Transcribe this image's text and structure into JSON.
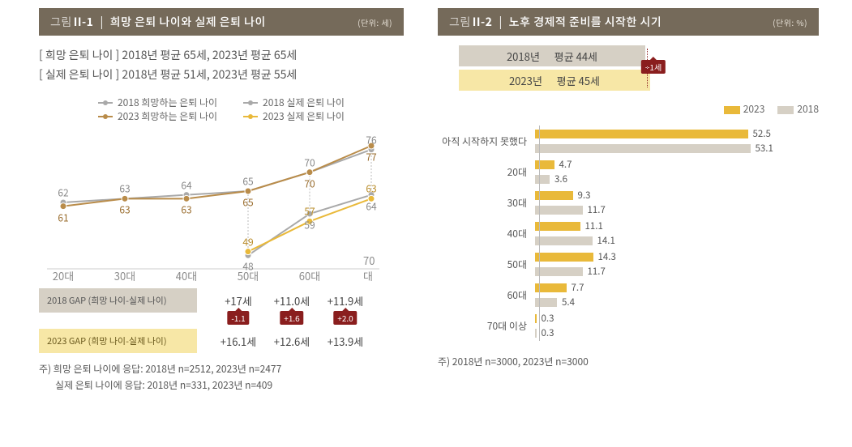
{
  "colors": {
    "header_bg": "#756a5a",
    "header_fg": "#ffffff",
    "unit_fg": "#e6e0d6",
    "gray_2018": "#b1aa9e",
    "brown_2023": "#b98c4a",
    "gold_actual": "#e9b93a",
    "light_gray": "#a9a9a9",
    "gap_2018_bg": "#d6d0c5",
    "gap_2023_bg": "#f7e7a6",
    "diff_badge": "#8a1e1e",
    "text": "#444444",
    "axis": "#bbbbbb",
    "bar_2023": "#e9b93a",
    "bar_2018": "#d6d0c5",
    "avg_2018_bg": "#d6d0c5",
    "avg_2023_bg": "#f7e7a6"
  },
  "left": {
    "header_prefix": "그림",
    "header_num": "II-1",
    "title": "희망 은퇴 나이와 실제 은퇴 나이",
    "unit": "(단위: 세)",
    "summary_line1": "[ 희망 은퇴 나이 ] 2018년 평균 65세, 2023년 평균 65세",
    "summary_line2": "[ 실제 은퇴 나이 ] 2018년 평균 51세, 2023년 평균 55세",
    "legend": {
      "hope_2018": "2018 희망하는 은퇴 나이",
      "hope_2023": "2023 희망하는 은퇴 나이",
      "act_2018": "2018 실제 은퇴 나이",
      "act_2023": "2023 실제 은퇴 나이"
    },
    "categories": [
      "20대",
      "30대",
      "40대",
      "50대",
      "60대",
      "70대"
    ],
    "series": {
      "hope_2018": {
        "values": [
          62,
          63,
          64,
          65,
          70,
          76
        ],
        "color": "#a9a9a9"
      },
      "hope_2023": {
        "values": [
          61,
          63,
          63,
          65,
          70,
          77
        ],
        "color": "#b98c4a"
      },
      "act_2018": {
        "values": [
          null,
          null,
          null,
          48,
          59,
          64
        ],
        "color": "#a9a9a9"
      },
      "act_2023": {
        "values": [
          null,
          null,
          null,
          49,
          57,
          63
        ],
        "color": "#e9b93a"
      }
    },
    "linechart": {
      "ymin": 44,
      "ymax": 80,
      "x_positions": [
        50,
        126,
        202,
        278,
        354,
        430
      ]
    },
    "gap_2018": {
      "label": "2018 GAP (희망 나이-실제 나이)",
      "cells": [
        "+17세",
        "+11.0세",
        "+11.9세"
      ]
    },
    "gap_2023": {
      "label": "2023 GAP (희망 나이-실제 나이)",
      "cells": [
        "+16.1세",
        "+12.6세",
        "+13.9세"
      ]
    },
    "diff_badges": [
      "-1.1",
      "+1.6",
      "+2.0"
    ],
    "footnote1": "주) 희망 은퇴 나이에 응답: 2018년 n=2512, 2023년 n=2477",
    "footnote2": "실제 은퇴 나이에 응답: 2018년 n=331, 2023년 n=409"
  },
  "right": {
    "header_prefix": "그림",
    "header_num": "II-2",
    "title": "노후 경제적 준비를 시작한 시기",
    "unit": "(단위: %)",
    "avg_2018_year": "2018년",
    "avg_2018_text": "평균 44세",
    "avg_2023_year": "2023년",
    "avg_2023_text": "평균 45세",
    "avg_diff": "+1세",
    "legend_2023": "2023",
    "legend_2018": "2018",
    "categories": [
      "아직 시작하지 못했다",
      "20대",
      "30대",
      "40대",
      "50대",
      "60대",
      "70대 이상"
    ],
    "values_2023": [
      52.5,
      4.7,
      9.3,
      11.1,
      14.3,
      7.7,
      0.3
    ],
    "values_2018": [
      53.1,
      3.6,
      11.7,
      14.1,
      11.7,
      5.4,
      0.3
    ],
    "xmax": 60,
    "footnote": "주) 2018년 n=3000, 2023년 n=3000"
  }
}
